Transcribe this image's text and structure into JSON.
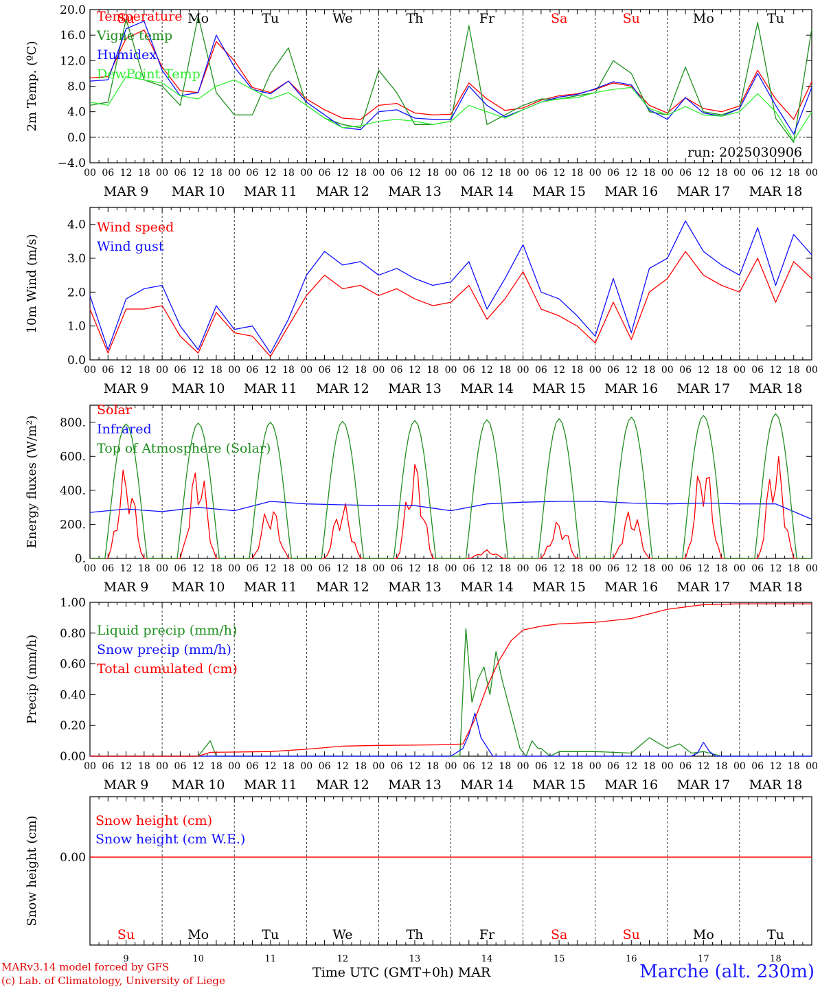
{
  "meta": {
    "run_label": "run: 2025030906",
    "credit_line1": "MARv3.14 model forced by GFS",
    "credit_line2": "(c) Lab. of Climatology, University of Liege",
    "station": "Marche (alt. 230m)",
    "x_title": "Time UTC (GMT+0h)",
    "x_month": "MAR"
  },
  "days": {
    "dates": [
      "MAR  9",
      "MAR 10",
      "MAR 11",
      "MAR 12",
      "MAR 13",
      "MAR 14",
      "MAR 15",
      "MAR 16",
      "MAR 17",
      "MAR 18"
    ],
    "bottom_numbers": [
      "9",
      "10",
      "11",
      "12",
      "13",
      "14",
      "15",
      "16",
      "17",
      "18"
    ],
    "weekdays": [
      "Su",
      "Mo",
      "Tu",
      "We",
      "Th",
      "Fr",
      "Sa",
      "Su",
      "Mo",
      "Tu"
    ],
    "weekend": [
      true,
      false,
      false,
      false,
      false,
      false,
      true,
      true,
      false,
      false
    ],
    "hour_ticks": [
      "00",
      "06",
      "12",
      "18"
    ],
    "final_tick": "00"
  },
  "colors": {
    "red": "#ff0000",
    "green": "#1f8f1f",
    "blue": "#1010ff",
    "lightgreen": "#33ee33",
    "weekday": "#000000",
    "weekend": "#ff0000"
  },
  "chart_data": [
    {
      "type": "line",
      "ylabel": "2m Temp. (ºC)",
      "ylim": [
        -4,
        20
      ],
      "yticks": [
        -4,
        0,
        4,
        8,
        12,
        16,
        20
      ],
      "ytick_labels": [
        "−4.0",
        "0.0",
        "4.0",
        "8.0",
        "12.0",
        "16.0",
        "20.0"
      ],
      "zero_line": true,
      "x_hours": [
        0,
        6,
        12,
        18,
        24,
        30,
        36,
        42,
        48,
        54,
        60,
        66,
        72,
        78,
        84,
        90,
        96,
        102,
        108,
        114,
        120,
        126,
        132,
        138,
        144,
        150,
        156,
        162,
        168,
        174,
        180,
        186,
        192,
        198,
        204,
        210,
        216,
        222,
        228,
        234,
        240
      ],
      "series": [
        {
          "name": "Temperature",
          "color": "red",
          "values": [
            9.3,
            9.5,
            15.5,
            16.8,
            11.0,
            7.3,
            7.0,
            15.0,
            12.0,
            7.8,
            7.0,
            8.8,
            6.0,
            4.3,
            3.0,
            2.8,
            5.0,
            5.3,
            3.8,
            3.5,
            3.6,
            8.5,
            6.0,
            4.2,
            4.6,
            5.8,
            6.5,
            6.8,
            7.5,
            8.5,
            8.0,
            5.0,
            3.8,
            6.2,
            4.5,
            4.0,
            4.9,
            10.5,
            6.0,
            2.8,
            8.7
          ]
        },
        {
          "name": "Vigne temp",
          "color": "green",
          "values": [
            5.0,
            5.5,
            18.5,
            9.0,
            8.0,
            5.0,
            19.0,
            7.0,
            3.5,
            3.5,
            10.0,
            14.0,
            5.0,
            3.0,
            2.0,
            1.5,
            10.5,
            7.0,
            2.0,
            2.0,
            2.5,
            17.5,
            2.0,
            3.5,
            5.0,
            6.0,
            6.0,
            6.5,
            7.0,
            12.0,
            10.0,
            4.0,
            3.5,
            11.0,
            4.0,
            3.5,
            4.5,
            18.0,
            3.0,
            -0.8,
            17.0
          ]
        },
        {
          "name": "Humidex",
          "color": "blue",
          "values": [
            8.8,
            9.0,
            17.0,
            18.2,
            10.5,
            6.5,
            7.0,
            16.0,
            11.0,
            7.5,
            6.8,
            8.8,
            5.5,
            3.5,
            1.5,
            1.2,
            4.0,
            4.3,
            3.0,
            2.8,
            2.8,
            8.0,
            5.0,
            3.2,
            4.3,
            5.5,
            6.3,
            6.7,
            7.6,
            8.7,
            8.2,
            4.3,
            2.8,
            6.2,
            3.8,
            3.3,
            4.5,
            10.0,
            5.0,
            0.5,
            7.8
          ]
        },
        {
          "name": "DewPoint Temp",
          "color": "lightgreen",
          "values": [
            5.5,
            5.0,
            9.5,
            9.0,
            8.5,
            6.5,
            6.0,
            8.0,
            9.0,
            7.5,
            6.0,
            7.0,
            5.0,
            3.0,
            1.5,
            1.8,
            2.5,
            2.8,
            2.5,
            2.0,
            2.5,
            5.0,
            4.0,
            3.0,
            4.3,
            5.5,
            6.0,
            6.2,
            7.0,
            7.5,
            7.8,
            4.5,
            3.5,
            4.8,
            3.5,
            3.3,
            4.0,
            6.8,
            4.0,
            -0.5,
            4.0
          ]
        }
      ]
    },
    {
      "type": "line",
      "ylabel": "10m Wind (m/s)",
      "ylim": [
        0,
        4.5
      ],
      "yticks": [
        0,
        1,
        2,
        3,
        4
      ],
      "ytick_labels": [
        "0.0",
        "1.0",
        "2.0",
        "3.0",
        "4.0"
      ],
      "x_hours": [
        0,
        6,
        12,
        18,
        24,
        30,
        36,
        42,
        48,
        54,
        60,
        66,
        72,
        78,
        84,
        90,
        96,
        102,
        108,
        114,
        120,
        126,
        132,
        138,
        144,
        150,
        156,
        162,
        168,
        174,
        180,
        186,
        192,
        198,
        204,
        210,
        216,
        222,
        228,
        234,
        240
      ],
      "series": [
        {
          "name": "Wind speed",
          "color": "red",
          "values": [
            1.5,
            0.2,
            1.5,
            1.5,
            1.6,
            0.7,
            0.2,
            1.4,
            0.8,
            0.7,
            0.1,
            1.0,
            1.9,
            2.5,
            2.1,
            2.2,
            1.9,
            2.1,
            1.8,
            1.6,
            1.7,
            2.2,
            1.2,
            1.8,
            2.6,
            1.5,
            1.3,
            1.0,
            0.5,
            1.7,
            0.6,
            2.0,
            2.4,
            3.2,
            2.5,
            2.2,
            2.0,
            3.0,
            1.7,
            2.9,
            2.4
          ]
        },
        {
          "name": "Wind gust",
          "color": "blue",
          "values": [
            1.9,
            0.3,
            1.8,
            2.1,
            2.2,
            1.0,
            0.3,
            1.6,
            0.9,
            1.0,
            0.2,
            1.2,
            2.5,
            3.2,
            2.8,
            2.9,
            2.5,
            2.7,
            2.4,
            2.2,
            2.3,
            2.9,
            1.5,
            2.4,
            3.4,
            2.0,
            1.8,
            1.3,
            0.7,
            2.4,
            0.8,
            2.7,
            3.0,
            4.1,
            3.2,
            2.8,
            2.5,
            3.9,
            2.2,
            3.7,
            3.1
          ]
        }
      ]
    },
    {
      "type": "line",
      "ylabel": "Energy fluxes (W/m²)",
      "ylim": [
        0,
        900
      ],
      "yticks": [
        0,
        200,
        400,
        600,
        800
      ],
      "ytick_labels": [
        "0.",
        "200.",
        "400.",
        "600.",
        "800."
      ],
      "series": [
        {
          "name": "Solar",
          "color": "red",
          "day_peaks": [
            550,
            580,
            330,
            340,
            590,
            50,
            230,
            300,
            610,
            640
          ]
        },
        {
          "name": "Infrared",
          "color": "blue",
          "x_hours": [
            0,
            12,
            24,
            36,
            48,
            60,
            72,
            84,
            96,
            108,
            120,
            132,
            144,
            156,
            168,
            180,
            192,
            204,
            216,
            228,
            240
          ],
          "values": [
            270,
            290,
            275,
            300,
            280,
            335,
            320,
            315,
            310,
            310,
            280,
            320,
            330,
            335,
            335,
            325,
            320,
            325,
            320,
            320,
            230
          ]
        },
        {
          "name": "Top of Atmosphere (Solar)",
          "color": "green",
          "day_peaks": [
            790,
            795,
            800,
            805,
            810,
            815,
            820,
            830,
            840,
            850
          ]
        }
      ]
    },
    {
      "type": "line",
      "ylabel": "Precip (mm/h)",
      "ylim": [
        0,
        1.0
      ],
      "yticks": [
        0,
        0.2,
        0.4,
        0.6,
        0.8,
        1.0
      ],
      "ytick_labels": [
        "0.00",
        "0.20",
        "0.40",
        "0.60",
        "0.80",
        "1.00"
      ],
      "series": [
        {
          "name": "Liquid precip (mm/h)",
          "color": "green",
          "x_hours": [
            0,
            36,
            38,
            40,
            42,
            44,
            60,
            96,
            120,
            123,
            125,
            127,
            129,
            131,
            133,
            135,
            137,
            139,
            141,
            143,
            145,
            147,
            149,
            150,
            153,
            156,
            168,
            180,
            186,
            192,
            196,
            200,
            204,
            206,
            208,
            210,
            240
          ],
          "values": [
            0,
            0,
            0.05,
            0.1,
            0.0,
            0.0,
            0.0,
            0.0,
            0.0,
            0.0,
            0.83,
            0.35,
            0.5,
            0.58,
            0.4,
            0.68,
            0.5,
            0.35,
            0.2,
            0.05,
            0.0,
            0.1,
            0.05,
            0.05,
            0.0,
            0.03,
            0.03,
            0.02,
            0.12,
            0.05,
            0.08,
            0.02,
            0.03,
            0.02,
            0.01,
            0.0,
            0.0
          ]
        },
        {
          "name": "Snow precip (mm/h)",
          "color": "blue",
          "x_hours": [
            0,
            120,
            124,
            126,
            128,
            130,
            134,
            200,
            202,
            204,
            206,
            208,
            240
          ],
          "values": [
            0,
            0,
            0.05,
            0.14,
            0.28,
            0.12,
            0.0,
            0.0,
            0.02,
            0.09,
            0.03,
            0.0,
            0.0
          ]
        },
        {
          "name": "Total cumulated (cm)",
          "color": "red",
          "x_hours": [
            0,
            36,
            40,
            48,
            60,
            72,
            84,
            96,
            108,
            120,
            124,
            128,
            132,
            136,
            140,
            144,
            150,
            156,
            168,
            180,
            192,
            204,
            216,
            228,
            240
          ],
          "values": [
            0,
            0,
            0.025,
            0.027,
            0.03,
            0.045,
            0.065,
            0.07,
            0.072,
            0.075,
            0.08,
            0.24,
            0.45,
            0.62,
            0.75,
            0.82,
            0.845,
            0.86,
            0.87,
            0.895,
            0.955,
            0.985,
            0.99,
            0.99,
            0.99
          ]
        }
      ]
    },
    {
      "type": "line",
      "ylabel": "Snow height (cm)",
      "ytick_labels": [
        "0.00"
      ],
      "series": [
        {
          "name": "Snow height (cm)",
          "color": "red",
          "values": [
            0,
            0
          ]
        },
        {
          "name": "Snow height (cm W.E.)",
          "color": "blue",
          "values": []
        }
      ]
    }
  ]
}
